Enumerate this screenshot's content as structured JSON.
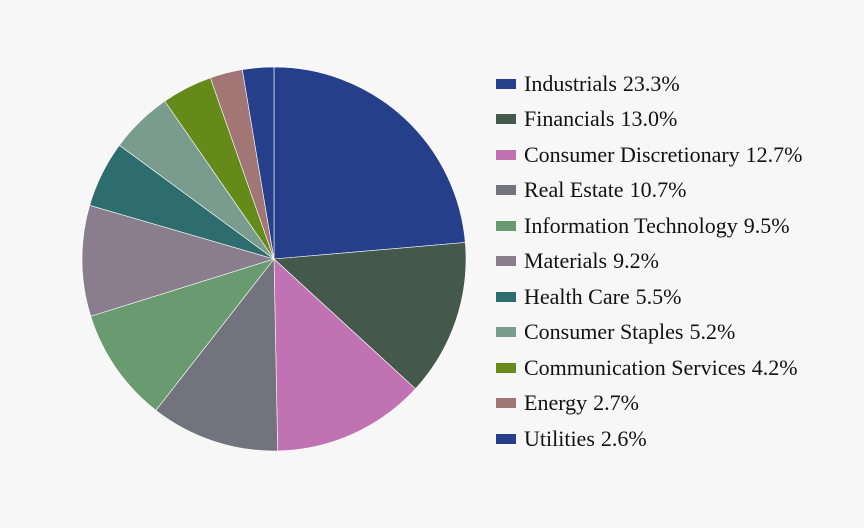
{
  "chart_data": {
    "type": "pie",
    "title": "",
    "start_angle_deg": 0,
    "direction": "clockwise",
    "legend_position": "right",
    "series": [
      {
        "name": "Industrials",
        "value": 23.3,
        "display": "23.3%",
        "color": "#263f8a"
      },
      {
        "name": "Financials",
        "value": 13.0,
        "display": "13.0%",
        "color": "#44594b"
      },
      {
        "name": "Consumer Discretionary",
        "value": 12.7,
        "display": "12.7%",
        "color": "#c172b2"
      },
      {
        "name": "Real Estate",
        "value": 10.7,
        "display": "10.7%",
        "color": "#72737d"
      },
      {
        "name": "Information Technology",
        "value": 9.5,
        "display": "9.5%",
        "color": "#6a9a6f"
      },
      {
        "name": "Materials",
        "value": 9.2,
        "display": "9.2%",
        "color": "#8a7d8d"
      },
      {
        "name": "Health Care",
        "value": 5.5,
        "display": "5.5%",
        "color": "#2d6d6d"
      },
      {
        "name": "Consumer Staples",
        "value": 5.2,
        "display": "5.2%",
        "color": "#7a9c8f"
      },
      {
        "name": "Communication Services",
        "value": 4.2,
        "display": "4.2%",
        "color": "#648a1a"
      },
      {
        "name": "Energy",
        "value": 2.7,
        "display": "2.7%",
        "color": "#a37676"
      },
      {
        "name": "Utilities",
        "value": 2.6,
        "display": "2.6%",
        "color": "#263f8a"
      }
    ]
  }
}
